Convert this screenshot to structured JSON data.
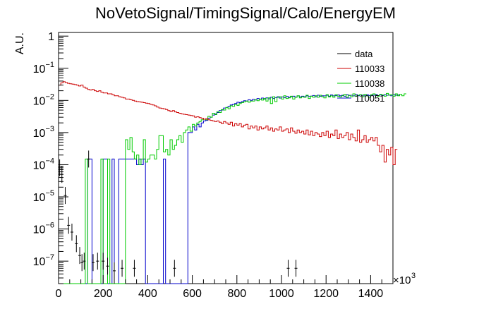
{
  "chart_data": {
    "type": "line",
    "title": "NoVetoSignal/TimingSignal/Calo/EnergyEM",
    "ylabel": "A.U.",
    "xlabel": "",
    "x_multiplier_label": "×10",
    "x_multiplier_exp": "3",
    "xlim": [
      0,
      1500
    ],
    "ylim": [
      2e-08,
      1.3
    ],
    "yscale": "log",
    "x_ticks": [
      "0",
      "200",
      "400",
      "600",
      "800",
      "1000",
      "1200",
      "1400"
    ],
    "y_ticks": [
      {
        "base": "1",
        "exp": ""
      },
      {
        "base": "10",
        "exp": "−1"
      },
      {
        "base": "10",
        "exp": "−2"
      },
      {
        "base": "10",
        "exp": "−3"
      },
      {
        "base": "10",
        "exp": "−4"
      },
      {
        "base": "10",
        "exp": "−5"
      },
      {
        "base": "10",
        "exp": "−6"
      },
      {
        "base": "10",
        "exp": "−7"
      }
    ],
    "legend_position": "top-right",
    "series": [
      {
        "name": "data",
        "color": "#000000",
        "style": "points",
        "x": [
          5,
          15,
          30,
          45,
          60,
          80,
          95,
          105,
          115,
          135,
          155,
          175,
          200,
          220,
          250,
          285,
          340,
          520,
          1030,
          1065
        ],
        "y": [
          8e-05,
          5e-05,
          1.1e-05,
          1.3e-06,
          8e-07,
          3.5e-07,
          1.5e-07,
          9e-08,
          1e-07,
          0.00015,
          9e-08,
          1e-07,
          1e-07,
          7e-08,
          5e-08,
          6e-08,
          6e-08,
          6e-08,
          6e-08,
          6e-08
        ]
      },
      {
        "name": "110033",
        "color": "#cc0000",
        "style": "step",
        "x_start": 0,
        "bin_width": 10,
        "y": [
          0.03,
          0.035,
          0.038,
          0.036,
          0.034,
          0.033,
          0.032,
          0.031,
          0.03,
          0.028,
          0.03,
          0.026,
          0.024,
          0.022,
          0.021,
          0.022,
          0.02,
          0.019,
          0.02,
          0.018,
          0.017,
          0.017,
          0.016,
          0.016,
          0.015,
          0.014,
          0.014,
          0.013,
          0.0125,
          0.012,
          0.011,
          0.011,
          0.0105,
          0.01,
          0.0095,
          0.0092,
          0.009,
          0.0088,
          0.0085,
          0.0082,
          0.008,
          0.0075,
          0.0072,
          0.0068,
          0.0062,
          0.0058,
          0.0056,
          0.0055,
          0.0052,
          0.0048,
          0.0045,
          0.0048,
          0.0044,
          0.0042,
          0.004,
          0.0038,
          0.0037,
          0.0036,
          0.0035,
          0.0034,
          0.0033,
          0.003,
          0.0031,
          0.0029,
          0.0028,
          0.0026,
          0.0027,
          0.0025,
          0.0024,
          0.0023,
          0.0022,
          0.0023,
          0.0021,
          0.0019,
          0.0022,
          0.002,
          0.0018,
          0.0021,
          0.0016,
          0.0019,
          0.0017,
          0.0019,
          0.0015,
          0.0017,
          0.0018,
          0.0013,
          0.0016,
          0.0014,
          0.0016,
          0.0012,
          0.0015,
          0.0013,
          0.0014,
          0.0016,
          0.0012,
          0.0014,
          0.0011,
          0.0013,
          0.0012,
          0.0015,
          0.0011,
          0.0012,
          0.0013,
          0.001,
          0.0014,
          0.0011,
          0.00095,
          0.0012,
          0.001,
          0.0011,
          0.0009,
          0.0012,
          0.00085,
          0.0011,
          0.0008,
          0.001,
          0.0009,
          0.00075,
          0.001,
          0.0008,
          0.0011,
          0.0007,
          0.0009,
          0.0008,
          0.0012,
          0.00065,
          0.0009,
          0.0007,
          0.0008,
          0.001,
          0.0006,
          0.0009,
          0.0007,
          0.00055,
          0.0012,
          0.0005,
          0.0006,
          0.0008,
          0.0005,
          0.0006,
          0.0007,
          0.00055,
          0.0007,
          0.0004,
          0.00025,
          0.0004,
          0.00012,
          0.0003,
          0.0002,
          0.00035,
          0.0001,
          0.0003
        ]
      },
      {
        "name": "110038",
        "color": "#00cc00",
        "style": "step",
        "x_start": 0,
        "bin_width": 10,
        "y": [
          0,
          0,
          0,
          0,
          0,
          0,
          0,
          0,
          0,
          0,
          0,
          0,
          0.00015,
          0,
          0,
          0,
          0,
          0,
          0,
          0.00015,
          0,
          0,
          0.00015,
          0,
          0,
          0,
          0,
          0,
          0,
          0,
          0.0006,
          0.0003,
          0.0007,
          0.00025,
          0.00015,
          0.0002,
          0.0001,
          0.00015,
          0.0006,
          0.00012,
          0.00015,
          0.0002,
          0.0002,
          0.00015,
          0.0003,
          0.0008,
          0.0008,
          0.00025,
          0.0003,
          0.0002,
          0.0006,
          0.0003,
          0.0004,
          0.0006,
          0.0008,
          0.0005,
          0.001,
          0.0012,
          0.0015,
          0.0011,
          0.0018,
          0.0016,
          0.002,
          0.0022,
          0.0025,
          0.0026,
          0.0025,
          0.0032,
          0.003,
          0.004,
          0.0036,
          0.0045,
          0.0042,
          0.0052,
          0.005,
          0.006,
          0.0055,
          0.0068,
          0.0065,
          0.0075,
          0.007,
          0.008,
          0.0085,
          0.009,
          0.0095,
          0.0088,
          0.0095,
          0.0095,
          0.0105,
          0.0098,
          0.011,
          0.0102,
          0.0115,
          0.0095,
          0.012,
          0.008,
          0.013,
          0.0092,
          0.0125,
          0.013,
          0.011,
          0.014,
          0.0115,
          0.012,
          0.0135,
          0.011,
          0.0125,
          0.014,
          0.012,
          0.013,
          0.0125,
          0.0145,
          0.0115,
          0.0135,
          0.0125,
          0.014,
          0.0125,
          0.0145,
          0.013,
          0.012,
          0.015,
          0.0128,
          0.0138,
          0.0125,
          0.015,
          0.0135,
          0.0128,
          0.014,
          0.0155,
          0.0125,
          0.0145,
          0.013,
          0.016,
          0.0135,
          0.0145,
          0.015,
          0.013,
          0.0155,
          0.014,
          0.0125,
          0.015,
          0.016,
          0.0145,
          0.0135,
          0.0155,
          0.0148,
          0.0135,
          0.0165,
          0.0145,
          0.015,
          0.0135,
          0.016,
          0.014,
          0.0155,
          0.014,
          0.016
        ]
      },
      {
        "name": "110051",
        "color": "#0000cc",
        "style": "step",
        "x_start": 0,
        "bin_width": 10,
        "y": [
          0,
          0,
          0,
          0,
          0,
          0,
          0,
          0,
          0,
          0,
          0,
          0,
          0,
          0.00015,
          0.00015,
          0,
          0,
          0,
          0,
          0,
          0.00015,
          0.00015,
          0,
          0,
          0.00015,
          0,
          0,
          0.00015,
          0.00015,
          0.00015,
          0.00015,
          0.00015,
          0.00015,
          0.00015,
          0.00015,
          0.0001,
          0.00015,
          0.0001,
          0.00015,
          0,
          0,
          0,
          0,
          0,
          0,
          0,
          0,
          0.00015,
          0,
          0,
          0,
          0,
          0,
          0,
          0,
          0,
          0,
          0,
          0.001,
          0.001,
          0.0015,
          0.0012,
          0.0018,
          0.0015,
          0.002,
          0.0023,
          0.0024,
          0.0028,
          0.003,
          0.0035,
          0.0038,
          0.0042,
          0.0048,
          0.005,
          0.0058,
          0.006,
          0.0065,
          0.0072,
          0.0075,
          0.008,
          0.0088,
          0.0085,
          0.0092,
          0.0098,
          0.0095,
          0.0105,
          0.01,
          0.0108,
          0.0103,
          0.0115,
          0.0108,
          0.0118,
          0.011,
          0.012,
          0.0112,
          0.0125,
          0.0115,
          0.0122,
          0.013,
          0.0118,
          0.0128,
          0.0122,
          0.0132,
          0.0125,
          0.013,
          0.0135,
          0.0125,
          0.0138,
          0.0128,
          0.0135,
          0.013,
          0.014,
          0.0132,
          0.0136,
          0.0142,
          0.013,
          0.0145,
          0.0135,
          0.014,
          0.0138,
          0.0145,
          0.0135,
          0.0148,
          0.0138,
          0.0142,
          0.0148,
          0.014,
          0.0145,
          0.0135,
          0.015,
          0.0142,
          0.0145,
          0.0138,
          0.0152,
          0.014,
          0.0148,
          0.0145,
          0.0138,
          0.015,
          0.0142,
          0.0148,
          0.0145,
          0.0152,
          0.0138,
          0.0148,
          0.0142,
          0.015,
          0.0145,
          0.0148,
          0.014,
          0.015,
          0.0145,
          0.0148
        ]
      }
    ]
  }
}
